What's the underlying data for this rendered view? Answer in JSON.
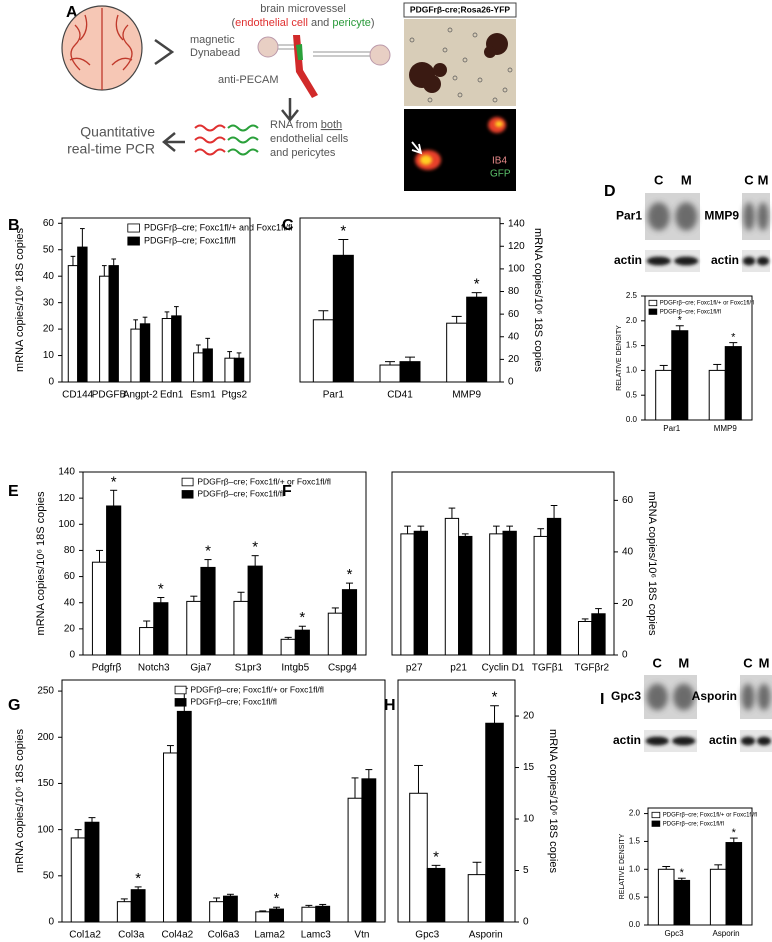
{
  "schematic": {
    "panel": "A",
    "bead_label": [
      "magnetic",
      "Dynabead"
    ],
    "vessel_title": "brain microvessel",
    "vessel_parts": [
      "(",
      "endothelial cell",
      " and ",
      "pericyte",
      ")"
    ],
    "antibody": "anti-PECAM",
    "pcr": [
      "Quantitative",
      "real-time PCR"
    ],
    "rna": [
      "RNA from ",
      "both",
      "endothelial cells",
      "and pericytes"
    ],
    "micrograph_title": "PDGFrβ-cre;Rosa26-YFP",
    "stain_labels": [
      "IB4",
      "GFP"
    ]
  },
  "chart_data": [
    {
      "type": "bar",
      "panel": "B",
      "ylabel": "mRNA copies/10⁶ 18S copies",
      "y_axis": "left",
      "categories": [
        "CD144",
        "PDGFB",
        "Angpt-2",
        "Edn1",
        "Esm1",
        "Ptgs2"
      ],
      "ylim": [
        0,
        62
      ],
      "yticks": [
        0,
        10,
        20,
        30,
        40,
        50,
        60
      ],
      "legend": "upper right",
      "series": [
        {
          "name": "PDGFrβ–cre; Foxc1fl/+ and Foxc1fl/fl",
          "color": "#ffffff",
          "values": [
            44,
            40,
            20,
            24,
            11,
            9
          ],
          "errors": [
            3.5,
            4,
            3.5,
            2.5,
            3,
            2.5
          ]
        },
        {
          "name": "PDGFrβ–cre; Foxc1fl/fl",
          "color": "#000000",
          "values": [
            51,
            44,
            22,
            25,
            12.5,
            9
          ],
          "errors": [
            7,
            2.5,
            2.5,
            3.5,
            4,
            2
          ]
        }
      ]
    },
    {
      "type": "bar",
      "panel": "C",
      "ylabel": "mRNA copies/10⁶ 18S copies",
      "y_axis": "right",
      "categories": [
        "Par1",
        "CD41",
        "MMP9"
      ],
      "ylim": [
        0,
        145
      ],
      "yticks": [
        0,
        20,
        40,
        60,
        80,
        100,
        120,
        140
      ],
      "series": [
        {
          "color": "#ffffff",
          "values": [
            55,
            15,
            52
          ],
          "errors": [
            8,
            3,
            6
          ]
        },
        {
          "color": "#000000",
          "values": [
            112,
            18,
            75
          ],
          "errors": [
            14,
            4,
            4
          ],
          "significance": [
            "*",
            null,
            "*"
          ]
        }
      ]
    },
    {
      "type": "bar",
      "panel": "D",
      "ylabel": "RELATIVE DENSITY",
      "y_axis": "left",
      "categories": [
        "Par1",
        "MMP9"
      ],
      "ylim": [
        0,
        2.5
      ],
      "yticks": [
        {
          "value": 0,
          "label": "0.0"
        },
        0.5,
        {
          "value": 1,
          "label": "1.0"
        },
        1.5,
        {
          "value": 2,
          "label": "2.0"
        },
        2.5
      ],
      "legend": "upper left",
      "blots": [
        {
          "target": "Par1",
          "lanes": [
            "C",
            "M"
          ],
          "loading": "actin"
        },
        {
          "target": "MMP9",
          "lanes": [
            "C",
            "M"
          ],
          "loading": "actin"
        }
      ],
      "series": [
        {
          "name": "PDGFrβ–cre; Foxc1fl/+ or Foxc1fl/fl",
          "color": "#ffffff",
          "values": [
            1.0,
            1.0
          ],
          "errors": [
            0.1,
            0.12
          ]
        },
        {
          "name": "PDGFrβ–cre; Foxc1fl/fl",
          "color": "#000000",
          "values": [
            1.8,
            1.48
          ],
          "errors": [
            0.1,
            0.08
          ],
          "significance": [
            "*",
            "*"
          ]
        }
      ]
    },
    {
      "type": "bar",
      "panel": "E",
      "ylabel": "mRNA copies/10⁶ 18S copies",
      "y_axis": "left",
      "categories": [
        "Pdgfrβ",
        "Notch3",
        "Gja7",
        "S1pr3",
        "Intgb5",
        "Cspg4"
      ],
      "ylim": [
        0,
        140
      ],
      "yticks": [
        0,
        20,
        40,
        60,
        80,
        100,
        120,
        140
      ],
      "legend": "upper right",
      "series": [
        {
          "name": "PDGFrβ–cre; Foxc1fl/+ or Foxc1fl/fl",
          "color": "#ffffff",
          "values": [
            71,
            21,
            41,
            41,
            12,
            32
          ],
          "errors": [
            9,
            5,
            4,
            7,
            1.5,
            4
          ]
        },
        {
          "name": "PDGFrβ–cre; Foxc1fl/fl",
          "color": "#000000",
          "values": [
            114,
            40,
            67,
            68,
            19,
            50
          ],
          "errors": [
            12,
            4,
            6,
            8,
            3,
            5
          ],
          "significance": [
            "*",
            "*",
            "*",
            "*",
            "*",
            "*"
          ]
        }
      ]
    },
    {
      "type": "bar",
      "panel": "F",
      "ylabel": "mRNA copies/10⁶ 18S copies",
      "y_axis": "right",
      "categories": [
        "p27",
        "p21",
        "Cyclin D1",
        "TGFβ1",
        "TGFβr2"
      ],
      "ylim": [
        0,
        71
      ],
      "yticks": [
        0,
        20,
        40,
        60
      ],
      "series": [
        {
          "color": "#ffffff",
          "values": [
            47,
            53,
            47,
            46,
            13
          ],
          "errors": [
            3,
            4,
            3,
            3,
            1
          ]
        },
        {
          "color": "#000000",
          "values": [
            48,
            46,
            48,
            53,
            16
          ],
          "errors": [
            2,
            1,
            2,
            5,
            2
          ]
        }
      ]
    },
    {
      "type": "bar",
      "panel": "G",
      "ylabel": "mRNA copies/10⁶ 18S copies",
      "y_axis": "left",
      "categories": [
        "Col1a2",
        "Col3a",
        "Col4a2",
        "Col6a3",
        "Lama2",
        "Lamc3",
        "Vtn"
      ],
      "ylim": [
        0,
        262
      ],
      "yticks": [
        0,
        50,
        100,
        150,
        200,
        250
      ],
      "legend": "upper right",
      "series": [
        {
          "name": "PDGFrβ–cre; Foxc1fl/+ or Foxc1fl/fl",
          "color": "#ffffff",
          "values": [
            91,
            22,
            183,
            22,
            11,
            16,
            134
          ],
          "errors": [
            9,
            3,
            8,
            4,
            1,
            2,
            22
          ]
        },
        {
          "name": "PDGFrβ–cre; Foxc1fl/fl",
          "color": "#000000",
          "values": [
            108,
            35,
            228,
            28,
            14,
            17,
            155
          ],
          "errors": [
            5,
            3,
            25,
            2,
            2,
            2,
            10
          ],
          "significance": [
            null,
            "*",
            null,
            null,
            "*",
            null,
            null
          ]
        }
      ]
    },
    {
      "type": "bar",
      "panel": "H",
      "ylabel": "mRNA copies/10⁶ 18S copies",
      "y_axis": "right",
      "categories": [
        "Gpc3",
        "Asporin"
      ],
      "ylim": [
        0,
        23.5
      ],
      "yticks": [
        0,
        5,
        10,
        15,
        20
      ],
      "series": [
        {
          "color": "#ffffff",
          "values": [
            12.5,
            4.6
          ],
          "errors": [
            2.7,
            1.2
          ]
        },
        {
          "color": "#000000",
          "values": [
            5.2,
            19.3
          ],
          "errors": [
            0.3,
            1.7
          ],
          "significance": [
            "*",
            "*"
          ]
        }
      ]
    },
    {
      "type": "bar",
      "panel": "I",
      "ylabel": "RELATIVE DENSITY",
      "y_axis": "left",
      "categories": [
        "Gpc3",
        "Asporin"
      ],
      "ylim": [
        0,
        2.1
      ],
      "yticks": [
        {
          "value": 0,
          "label": "0.0"
        },
        0.5,
        {
          "value": 1,
          "label": "1.0"
        },
        1.5,
        {
          "value": 2,
          "label": "2.0"
        }
      ],
      "legend": "upper left",
      "blots": [
        {
          "target": "Gpc3",
          "lanes": [
            "C",
            "M"
          ],
          "loading": "actin"
        },
        {
          "target": "Asporin",
          "lanes": [
            "C",
            "M"
          ],
          "loading": "actin"
        }
      ],
      "series": [
        {
          "name": "PDGFrβ–cre; Foxc1fl/+ or Foxc1fl/fl",
          "color": "#ffffff",
          "values": [
            1.0,
            1.0
          ],
          "errors": [
            0.05,
            0.08
          ]
        },
        {
          "name": "PDGFrβ–cre; Foxc1fl/fl",
          "color": "#000000",
          "values": [
            0.8,
            1.48
          ],
          "errors": [
            0.04,
            0.08
          ],
          "significance": [
            "*",
            "*"
          ]
        }
      ]
    }
  ]
}
